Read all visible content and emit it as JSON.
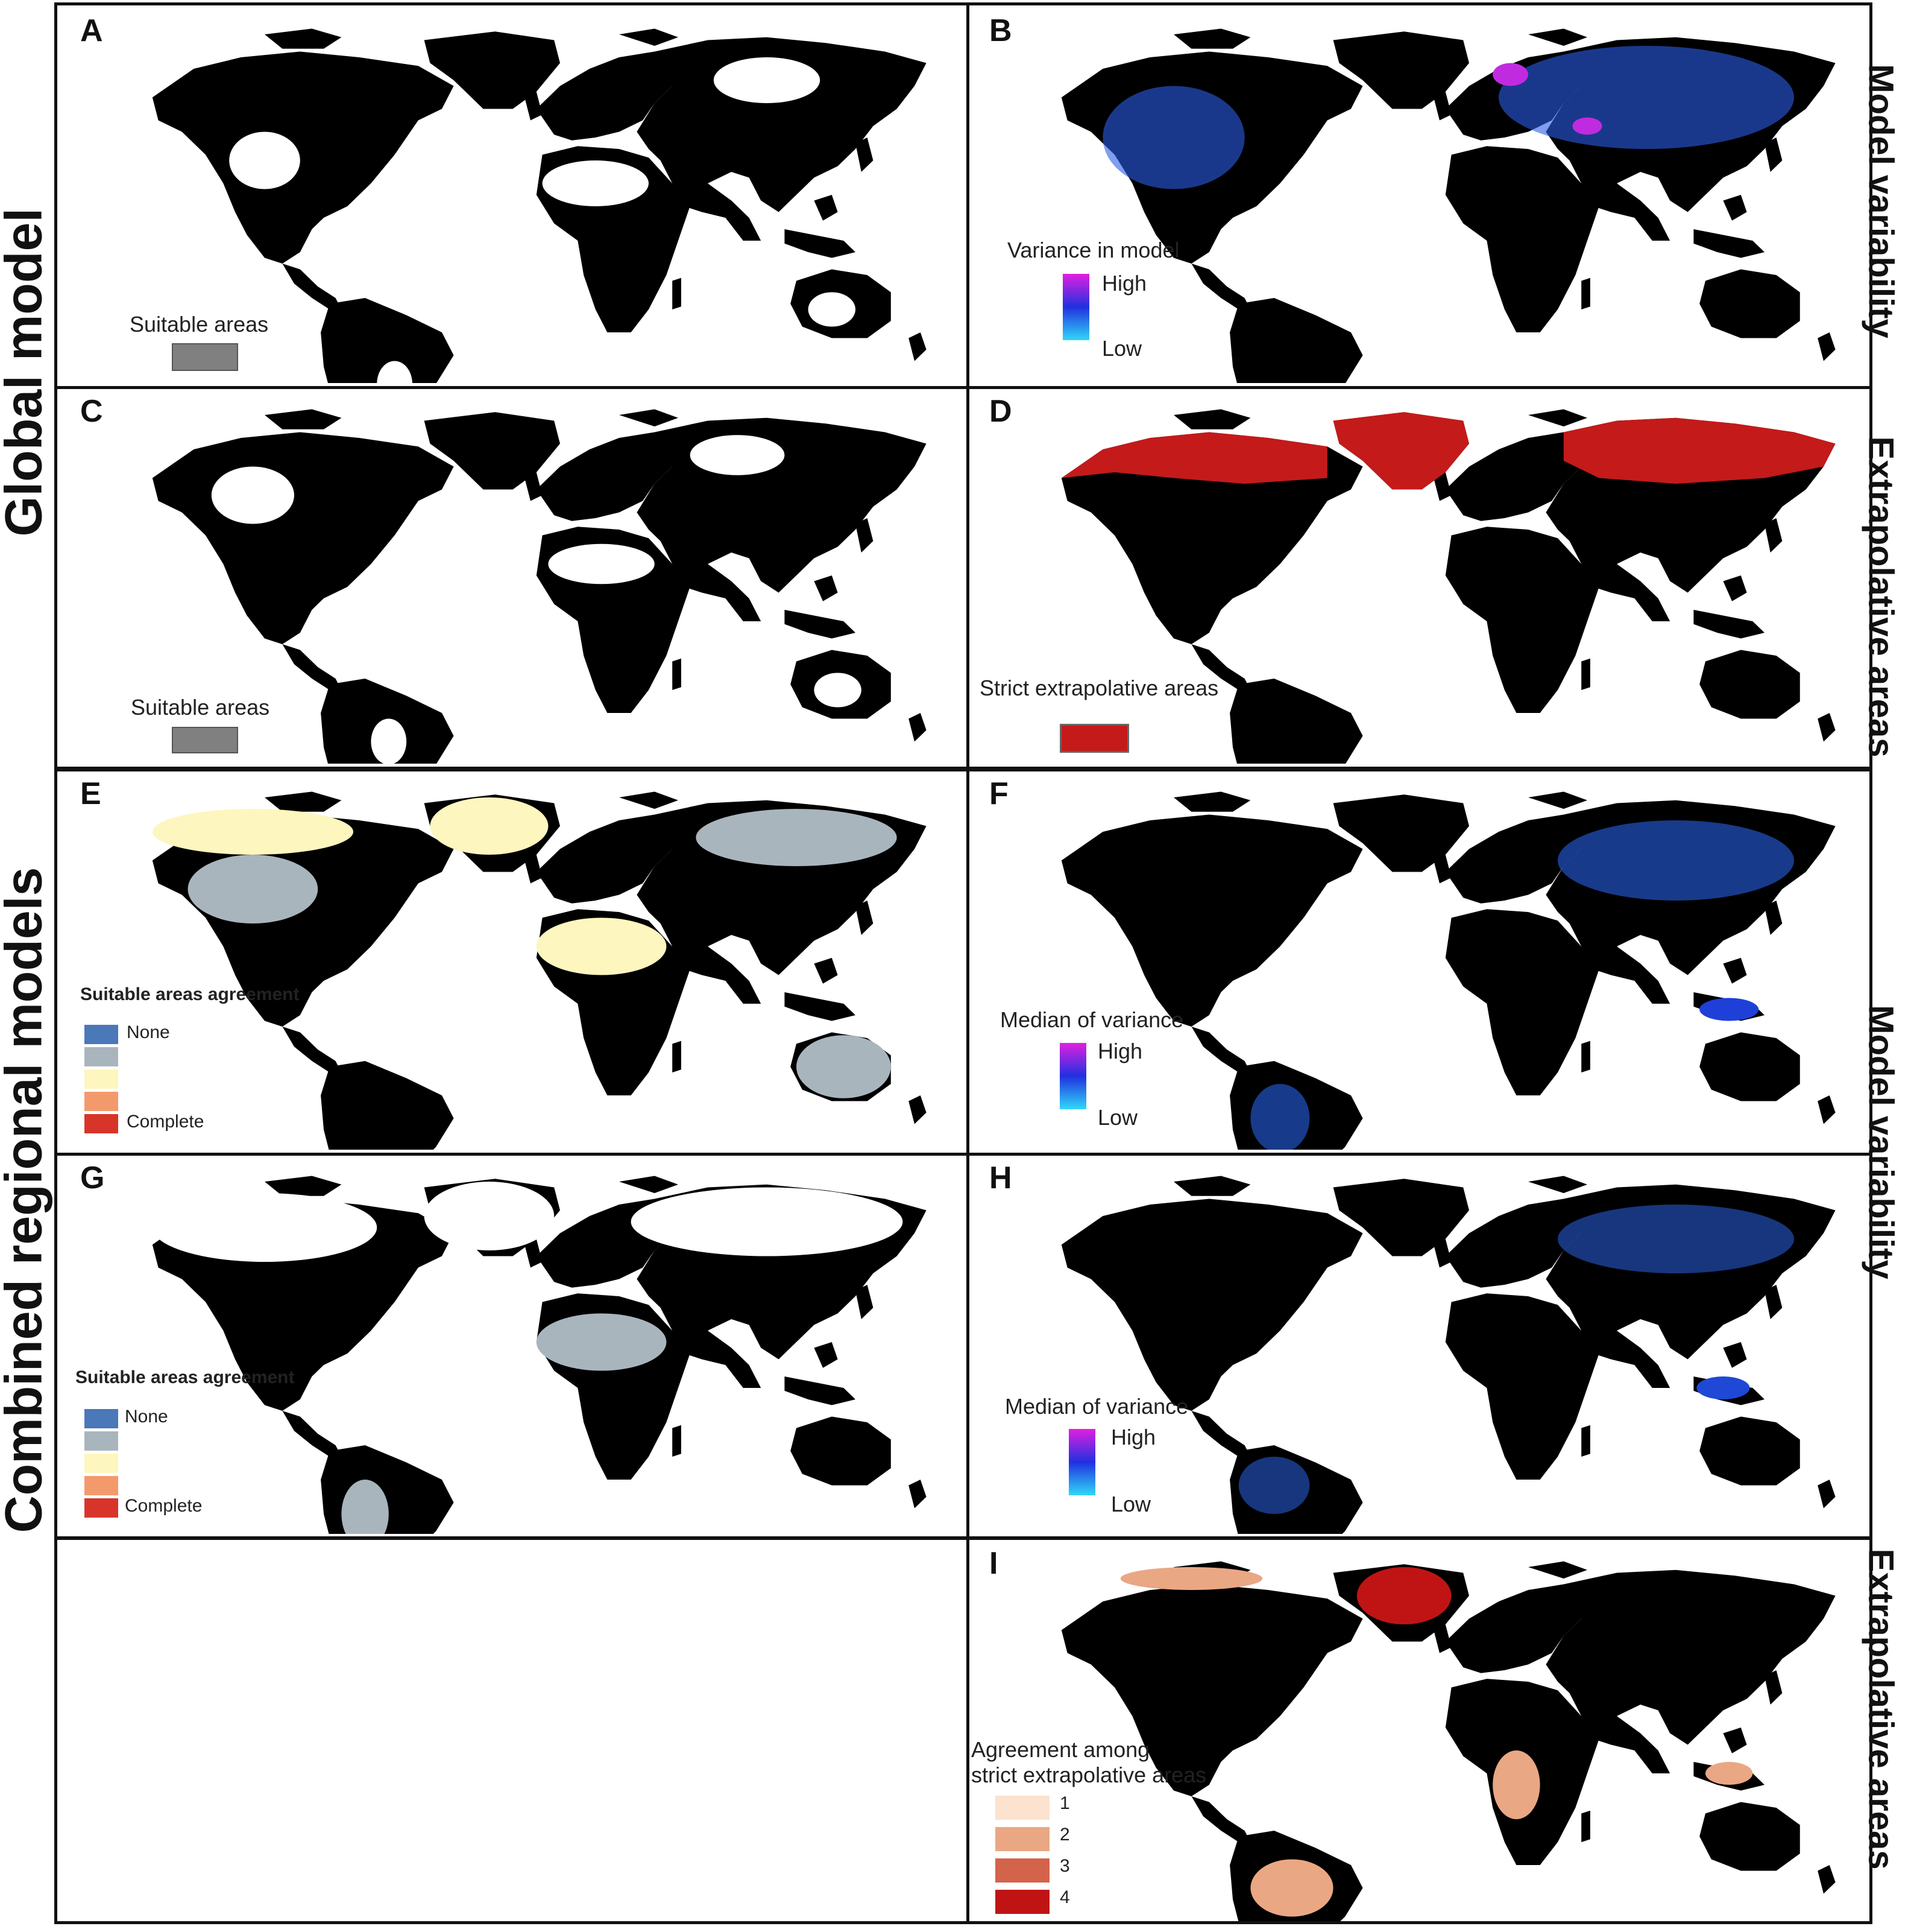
{
  "row_labels": {
    "global": "Global model",
    "combined": "Combined regional models"
  },
  "side_labels": {
    "ab": "Model variability",
    "cd": "Extrapolative areas",
    "efgh": "Model variability",
    "i": "Extrapolative areas"
  },
  "panels": {
    "A": {
      "label": "A",
      "legend_title": "Suitable areas",
      "swatch_color": "#808080"
    },
    "B": {
      "label": "B",
      "legend_title": "Variance in model",
      "high": "High",
      "low": "Low"
    },
    "C": {
      "label": "C",
      "legend_title": "Suitable areas",
      "swatch_color": "#808080"
    },
    "D": {
      "label": "D",
      "legend_title": "Strict extrapolative areas",
      "swatch_color": "#c41a1a"
    },
    "E": {
      "label": "E",
      "legend_title": "Suitable areas agreement",
      "items": [
        {
          "label": "None",
          "color": "#4a78b8"
        },
        {
          "label": "",
          "color": "#a9b5bd"
        },
        {
          "label": "",
          "color": "#fdf6be"
        },
        {
          "label": "",
          "color": "#f39a6c"
        },
        {
          "label": "Complete",
          "color": "#d7352a"
        }
      ]
    },
    "F": {
      "label": "F",
      "legend_title": "Median of variance",
      "high": "High",
      "low": "Low"
    },
    "G": {
      "label": "G",
      "legend_title": "Suitable areas agreement",
      "items": [
        {
          "label": "None",
          "color": "#4a78b8"
        },
        {
          "label": "",
          "color": "#a9b5bd"
        },
        {
          "label": "",
          "color": "#fdf6be"
        },
        {
          "label": "",
          "color": "#f39a6c"
        },
        {
          "label": "Complete",
          "color": "#d7352a"
        }
      ]
    },
    "H": {
      "label": "H",
      "legend_title": "Median of variance",
      "high": "High",
      "low": "Low"
    },
    "I": {
      "label": "I",
      "legend_title_1": "Agreement among",
      "legend_title_2": "strict extrapolative areas",
      "items": [
        {
          "label": "1",
          "color": "#fbe3cf"
        },
        {
          "label": "2",
          "color": "#eaa784"
        },
        {
          "label": "3",
          "color": "#d3634a"
        },
        {
          "label": "4",
          "color": "#c01414"
        }
      ]
    }
  },
  "map_styles": {
    "A": {
      "land": "#7a7a7a",
      "spot": "#ffffff",
      "spot2": "#7a7a7a"
    },
    "B": {
      "land": "#3aa0f0",
      "spot": "#2b5ee8",
      "spot2": "#c12be0"
    },
    "C": {
      "land": "#7a7a7a",
      "spot": "#ffffff",
      "spot2": "#7a7a7a"
    },
    "D": {
      "land": "#ffffff",
      "spot": "#c41a1a",
      "spot2": "#ffffff"
    },
    "E": {
      "land": "#d7352a",
      "spot": "#a9b5bd",
      "spot2": "#fdf6be"
    },
    "F": {
      "land": "#34c0f2",
      "spot": "#2660e6",
      "spot2": "#1e40d8"
    },
    "G": {
      "land": "#f39a6c",
      "spot": "#a9b5bd",
      "spot2": "#ffffff"
    },
    "H": {
      "land": "#2fd0f2",
      "spot": "#2a62e6",
      "spot2": "#1f48d6"
    },
    "I": {
      "land": "#fbe3cf",
      "spot": "#eaa784",
      "spot2": "#c01414"
    }
  }
}
